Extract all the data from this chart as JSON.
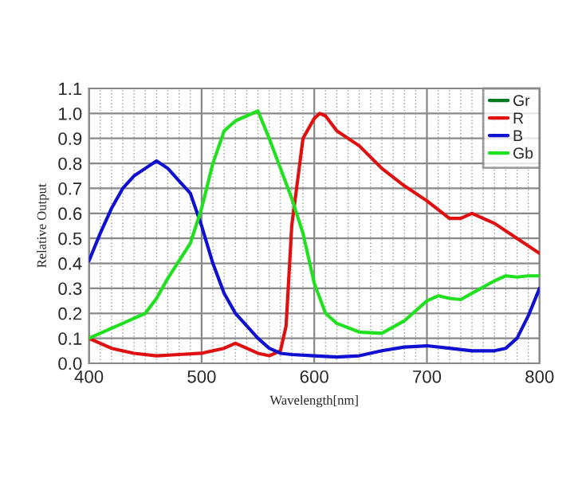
{
  "chart_data": {
    "type": "line",
    "xlabel": "Wavelength[nm]",
    "ylabel": "Relative Output",
    "xlim": [
      400,
      800
    ],
    "xticks": [
      400,
      500,
      600,
      700,
      800
    ],
    "ylim": [
      0,
      1.1
    ],
    "yticks": [
      {
        "value": 0,
        "label": "0.0"
      },
      0.1,
      0.2,
      0.3,
      0.4,
      0.5,
      0.6,
      0.7,
      0.8,
      0.9,
      {
        "value": 1,
        "label": "1.0"
      },
      1.1
    ],
    "grid": true,
    "legend": "top right",
    "marker": "none",
    "line_style": "solid",
    "series": [
      {
        "name": "Gr",
        "color": "#007a20"
      },
      {
        "name": "R",
        "color": "#e01010",
        "x": [
          400,
          420,
          440,
          460,
          480,
          500,
          520,
          530,
          540,
          550,
          560,
          570,
          575,
          580,
          590,
          600,
          605,
          610,
          620,
          640,
          660,
          680,
          700,
          720,
          730,
          740,
          760,
          780,
          800
        ],
        "values": [
          0.1,
          0.06,
          0.04,
          0.03,
          0.035,
          0.04,
          0.06,
          0.08,
          0.06,
          0.04,
          0.03,
          0.05,
          0.15,
          0.55,
          0.9,
          0.98,
          1.0,
          0.99,
          0.93,
          0.87,
          0.78,
          0.71,
          0.65,
          0.58,
          0.58,
          0.6,
          0.56,
          0.5,
          0.44
        ]
      },
      {
        "name": "B",
        "color": "#1010d0",
        "x": [
          400,
          410,
          420,
          430,
          440,
          450,
          460,
          470,
          480,
          490,
          500,
          510,
          520,
          530,
          540,
          550,
          560,
          570,
          580,
          600,
          620,
          640,
          660,
          680,
          700,
          720,
          740,
          760,
          770,
          780,
          790,
          800
        ],
        "values": [
          0.41,
          0.52,
          0.62,
          0.7,
          0.75,
          0.78,
          0.81,
          0.78,
          0.73,
          0.68,
          0.55,
          0.4,
          0.28,
          0.2,
          0.15,
          0.1,
          0.06,
          0.04,
          0.035,
          0.03,
          0.025,
          0.03,
          0.05,
          0.065,
          0.07,
          0.06,
          0.05,
          0.05,
          0.06,
          0.1,
          0.19,
          0.3
        ]
      },
      {
        "name": "Gb",
        "color": "#20e020",
        "x": [
          400,
          430,
          450,
          460,
          470,
          480,
          490,
          500,
          510,
          520,
          530,
          540,
          550,
          560,
          570,
          580,
          590,
          600,
          610,
          620,
          640,
          660,
          680,
          700,
          710,
          720,
          730,
          740,
          760,
          770,
          780,
          790,
          800
        ],
        "values": [
          0.1,
          0.16,
          0.2,
          0.26,
          0.34,
          0.41,
          0.48,
          0.62,
          0.8,
          0.93,
          0.97,
          0.99,
          1.01,
          0.9,
          0.78,
          0.66,
          0.52,
          0.32,
          0.2,
          0.16,
          0.125,
          0.12,
          0.17,
          0.25,
          0.27,
          0.26,
          0.255,
          0.28,
          0.33,
          0.35,
          0.345,
          0.35,
          0.35
        ]
      }
    ]
  }
}
